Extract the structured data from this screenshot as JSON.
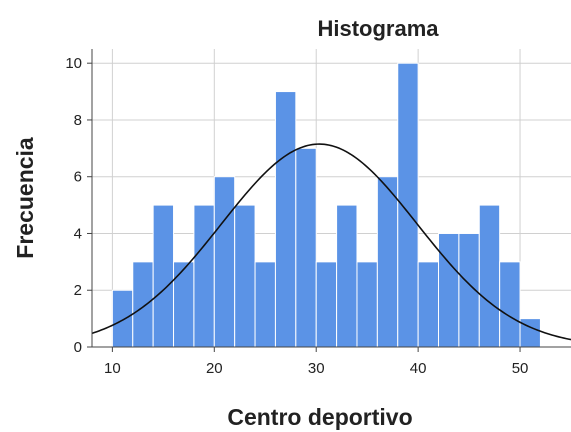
{
  "chart_data": {
    "type": "bar",
    "title": "Histograma",
    "xlabel": "Centro deportivo",
    "ylabel": "Frecuencia",
    "xlim": [
      8,
      55
    ],
    "ylim": [
      0,
      10.5
    ],
    "x_ticks": [
      10,
      20,
      30,
      40,
      50
    ],
    "y_ticks": [
      0,
      2,
      4,
      6,
      8,
      10
    ],
    "bin_width": 2,
    "bins": [
      {
        "start": 10,
        "end": 12,
        "count": 2
      },
      {
        "start": 12,
        "end": 14,
        "count": 3
      },
      {
        "start": 14,
        "end": 16,
        "count": 5
      },
      {
        "start": 16,
        "end": 18,
        "count": 3
      },
      {
        "start": 18,
        "end": 20,
        "count": 5
      },
      {
        "start": 20,
        "end": 22,
        "count": 6
      },
      {
        "start": 22,
        "end": 24,
        "count": 5
      },
      {
        "start": 24,
        "end": 26,
        "count": 3
      },
      {
        "start": 26,
        "end": 28,
        "count": 9
      },
      {
        "start": 28,
        "end": 30,
        "count": 7
      },
      {
        "start": 30,
        "end": 32,
        "count": 3
      },
      {
        "start": 32,
        "end": 34,
        "count": 5
      },
      {
        "start": 34,
        "end": 36,
        "count": 3
      },
      {
        "start": 36,
        "end": 38,
        "count": 6
      },
      {
        "start": 38,
        "end": 40,
        "count": 10
      },
      {
        "start": 40,
        "end": 42,
        "count": 3
      },
      {
        "start": 42,
        "end": 44,
        "count": 4
      },
      {
        "start": 44,
        "end": 46,
        "count": 4
      },
      {
        "start": 46,
        "end": 48,
        "count": 5
      },
      {
        "start": 48,
        "end": 50,
        "count": 3
      },
      {
        "start": 50,
        "end": 52,
        "count": 1
      }
    ],
    "normal_curve": {
      "mean": 30.3,
      "sd": 9.6,
      "peak": 7.15
    },
    "grid": true,
    "colors": {
      "bar": "#5b93e6",
      "bar_edge": "#ffffff",
      "curve": "#111111",
      "grid": "#d0d0d0",
      "axis": "#444444"
    }
  }
}
